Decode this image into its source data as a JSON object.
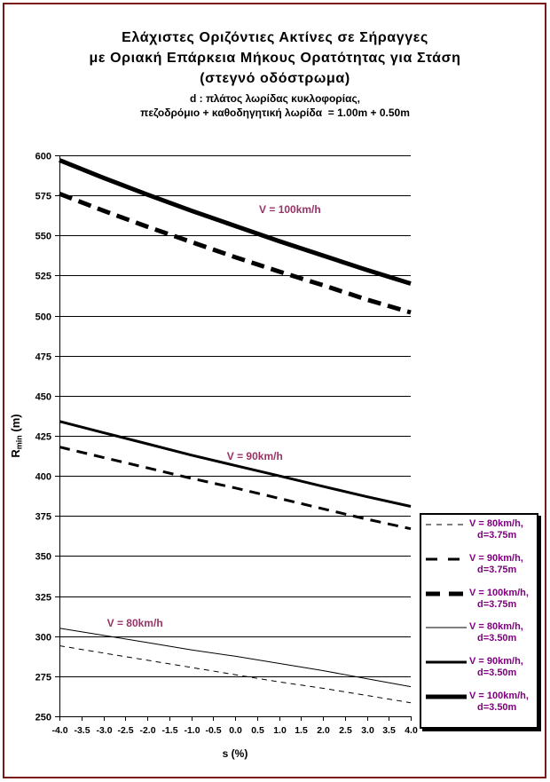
{
  "title": {
    "line1": "Ελάχιστες Οριζόντιες Ακτίνες σε Σήραγγες",
    "line2": "με Οριακή Επάρκεια Μήκους Ορατότητας για Στάση",
    "line3": "(στεγνό οδόστρωμα)",
    "line4": "d : πλάτος λωρίδας κυκλοφορίας,",
    "line5": "πεζοδρόμιο + καθοδηγητική λωρίδα  = 1.00m + 0.50m"
  },
  "colors": {
    "frame_border": "#7c1717",
    "line": "#000000",
    "axis_text": "#000000",
    "annotation_text": "#993366",
    "legend_text": "#800080"
  },
  "chart_data": {
    "type": "line",
    "xlabel": "s (%)",
    "ylabel": "Rmin (m)",
    "ylabel_parts": {
      "main": "R",
      "sub": "min",
      "rest": " (m)"
    },
    "xlim": [
      -4,
      4
    ],
    "ylim": [
      250,
      600
    ],
    "grid": "horizontal",
    "legend_position": "right-bottom",
    "x_tick_labels": [
      "-4.0",
      "-3.5",
      "-3.0",
      "-2.5",
      "-2.0",
      "-1.5",
      "-1.0",
      "-0.5",
      "0.0",
      "0.5",
      "1.0",
      "1.5",
      "2.0",
      "2.5",
      "3.0",
      "3.5",
      "4.0"
    ],
    "y_tick_labels": [
      "250",
      "275",
      "300",
      "325",
      "350",
      "375",
      "400",
      "425",
      "450",
      "475",
      "500",
      "525",
      "550",
      "575",
      "600"
    ],
    "x": [
      -4,
      -3,
      -2,
      -1,
      0,
      1,
      2,
      3,
      4
    ],
    "series": [
      {
        "name": "V = 80km/h, d=3.75m",
        "legend_line1": "V = 80km/h,",
        "legend_line2": "d=3.75m",
        "line_style": "dashed",
        "line_weight": 1,
        "values": [
          294,
          289.5,
          285,
          280.5,
          276,
          271.5,
          267.5,
          263,
          258.5
        ]
      },
      {
        "name": "V = 90km/h, d=3.75m",
        "legend_line1": "V = 90km/h,",
        "legend_line2": "d=3.75m",
        "line_style": "dashed",
        "line_weight": 3,
        "values": [
          418,
          411.5,
          405,
          398.5,
          392.5,
          386,
          379.5,
          373,
          367
        ]
      },
      {
        "name": "V = 100km/h, d=3.75m",
        "legend_line1": "V = 100km/h,",
        "legend_line2": "d=3.75m",
        "line_style": "dashed",
        "line_weight": 5,
        "values": [
          576,
          565.5,
          555.5,
          546,
          536.5,
          527.5,
          519,
          510,
          502
        ]
      },
      {
        "name": "V = 80km/h, d=3.50m",
        "legend_line1": "V = 80km/h,",
        "legend_line2": "d=3.50m",
        "line_style": "solid",
        "line_weight": 1,
        "values": [
          305,
          300.5,
          296,
          291.5,
          287.5,
          283,
          278.5,
          273.5,
          268.5
        ]
      },
      {
        "name": "V = 90km/h, d=3.50m",
        "legend_line1": "V = 90km/h,",
        "legend_line2": "d=3.50m",
        "line_style": "solid",
        "line_weight": 3,
        "values": [
          434,
          427,
          420,
          413,
          406.5,
          400,
          393.5,
          387,
          381
        ]
      },
      {
        "name": "V = 100km/h, d=3.50m",
        "legend_line1": "V = 100km/h,",
        "legend_line2": "d=3.50m",
        "line_style": "solid",
        "line_weight": 5,
        "values": [
          597,
          586,
          575.5,
          565.5,
          556,
          546.5,
          537.5,
          528.5,
          520
        ]
      }
    ],
    "annotations": [
      {
        "text": "V = 100km/h",
        "x": 1.25,
        "y": 564
      },
      {
        "text": "V = 90km/h",
        "x": 0.45,
        "y": 410
      },
      {
        "text": "V = 80km/h",
        "x": -2.28,
        "y": 306
      }
    ]
  }
}
